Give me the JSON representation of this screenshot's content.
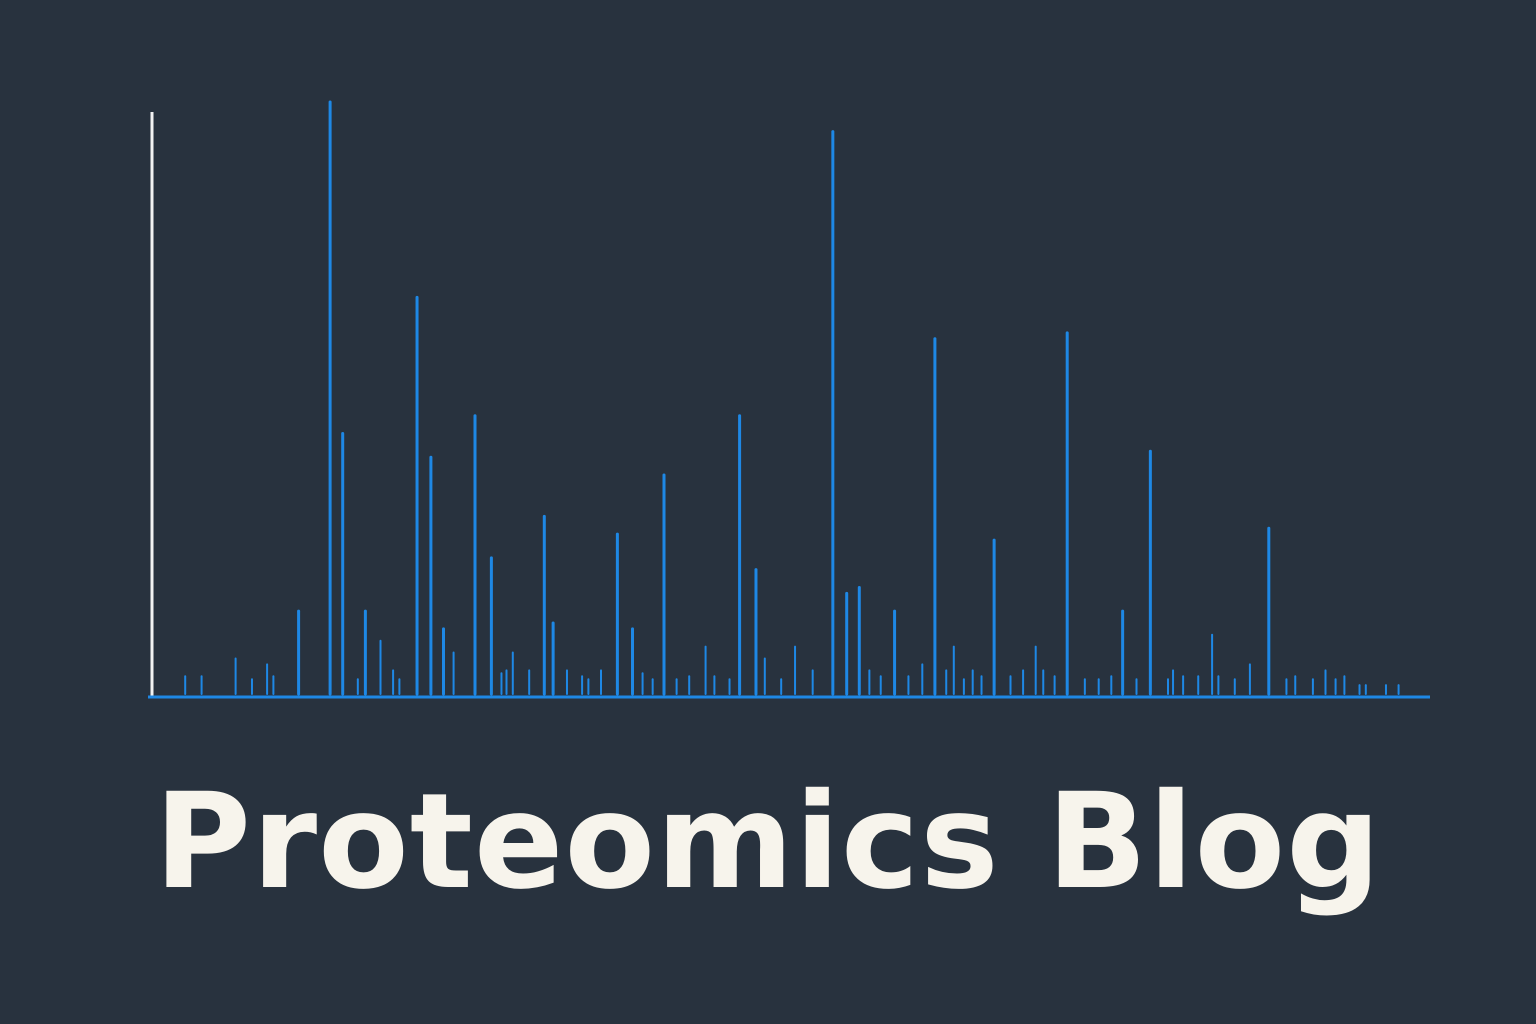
{
  "title": "Proteomics Blog",
  "colors": {
    "background": "#28323e",
    "peak": "#1e88e5",
    "y_axis": "#f2f2f2",
    "baseline": "#1e88e5",
    "title": "#f7f4ec"
  },
  "chart_data": {
    "type": "bar",
    "style": "mass-spectrum stick plot",
    "title": "",
    "xlabel": "",
    "ylabel": "",
    "tick_labels": "none",
    "grid": false,
    "legend": "none",
    "xlim": [
      0,
      100
    ],
    "ylim": [
      0,
      100
    ],
    "x": [
      2,
      3.3,
      6,
      7.3,
      8.5,
      9,
      11,
      13.5,
      14.5,
      15.7,
      16.3,
      17.5,
      18.5,
      19,
      20.4,
      21.5,
      22.5,
      23.3,
      25,
      26.3,
      27.1,
      27.5,
      28,
      29.3,
      30.5,
      31.2,
      32.3,
      33.5,
      34,
      35,
      36.3,
      37.5,
      38.3,
      39.1,
      40,
      41,
      42,
      43.3,
      44,
      45.2,
      46,
      47.3,
      48,
      49.3,
      50.4,
      51.8,
      53.4,
      54.5,
      55.5,
      56.3,
      57.2,
      58.3,
      59.4,
      60.5,
      61.5,
      62.4,
      63,
      63.8,
      64.5,
      65.2,
      66.2,
      67.5,
      68.5,
      69.5,
      70.1,
      71,
      72,
      73.4,
      74.5,
      75.5,
      76.4,
      77.5,
      78.6,
      80,
      80.4,
      81.2,
      82.4,
      83.5,
      84,
      85.3,
      86.5,
      88,
      89.4,
      90.1,
      91.5,
      92.5,
      93.3,
      94,
      95.2,
      95.7,
      97.3,
      98.3
    ],
    "y": [
      3,
      3,
      6,
      2.5,
      5,
      3,
      14,
      100,
      44,
      2.5,
      14,
      9,
      4,
      2.5,
      67,
      40,
      11,
      7,
      47,
      23,
      3.5,
      4,
      7,
      4,
      30,
      12,
      4,
      3,
      2.5,
      4,
      27,
      11,
      3.5,
      2.5,
      37,
      2.5,
      3,
      8,
      3,
      2.5,
      47,
      21,
      6,
      2.5,
      8,
      4,
      95,
      17,
      18,
      4,
      3,
      14,
      3,
      5,
      60,
      4,
      8,
      2.5,
      4,
      3,
      26,
      3,
      4,
      8,
      4,
      3,
      61,
      2.5,
      2.5,
      3,
      14,
      2.5,
      41,
      2.5,
      4,
      3,
      3,
      10,
      3,
      2.5,
      5,
      28,
      2.5,
      3,
      2.5,
      4,
      2.5,
      3,
      1.5,
      1.5,
      1.5,
      1.5
    ]
  }
}
